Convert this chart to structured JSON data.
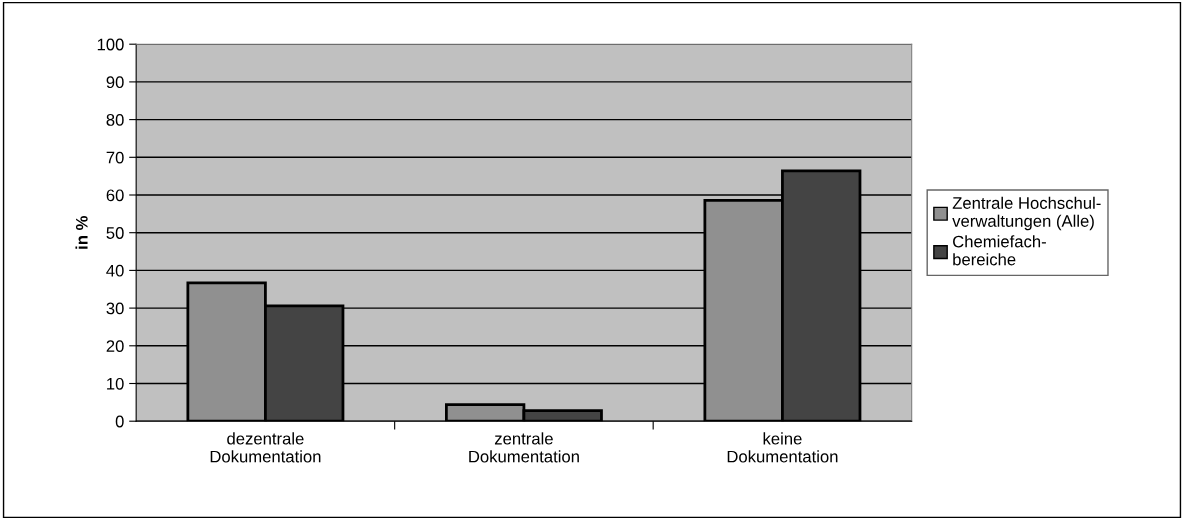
{
  "chart_data": {
    "type": "bar",
    "ylabel": "in %",
    "categories": [
      "dezentrale\nDokumentation",
      "zentrale\nDokumentation",
      "keine\nDokumentation"
    ],
    "series": [
      {
        "name": "Zentrale Hochschul-\nverwaltungen (Alle)",
        "color": "#909090",
        "values": [
          36.7,
          4.4,
          58.6
        ]
      },
      {
        "name": "Chemiefach-\nbereiche",
        "color": "#444444",
        "values": [
          30.6,
          2.8,
          66.4
        ]
      }
    ],
    "ylim": [
      0,
      100
    ],
    "yticks": [
      0,
      10,
      20,
      30,
      40,
      50,
      60,
      70,
      80,
      90,
      100
    ],
    "grid": "y",
    "legend": "right"
  }
}
